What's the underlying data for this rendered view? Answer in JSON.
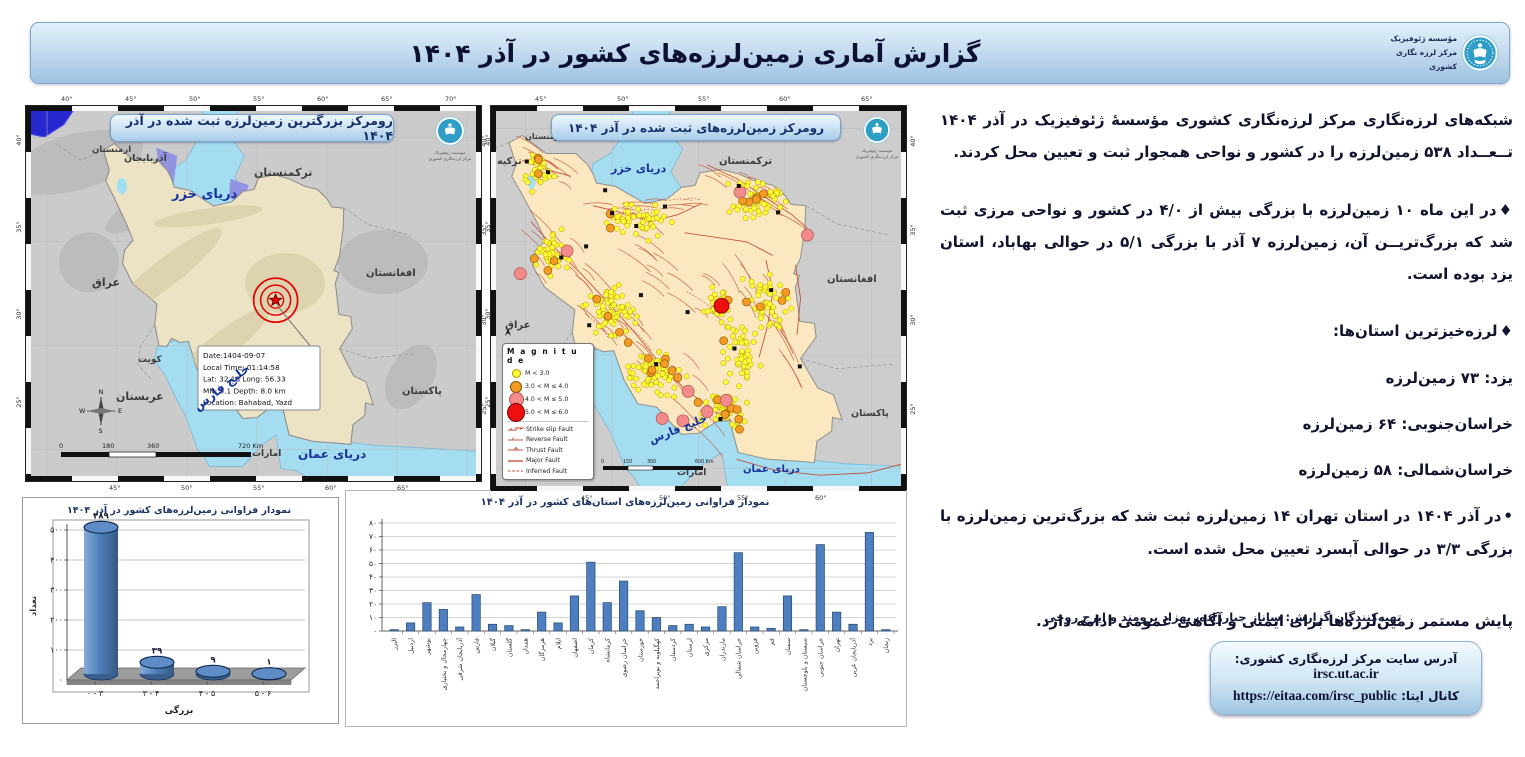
{
  "header": {
    "title": "گزارش آماری زمین‌لرزه‌های کشور در آذر ۱۴۰۴",
    "org_line1": "مؤسسه ژئوفیزیک",
    "org_line2": "مرکز لرزه نگاری کشوری"
  },
  "left_map": {
    "title": "رومرکز بزرگترین زمین‌لرزه ثبت شده در آذر ۱۴۰۴",
    "info_box": [
      "Date:1404-09-07",
      "Local Time: 01:14:58",
      "Lat: 32.18  Long: 56.33",
      "MN: 5.1  Depth: 8.0  km",
      "Location: Bahabad, Yazd"
    ],
    "scale_labels": [
      "0",
      "180",
      "360",
      "720 Km"
    ],
    "compass": [
      "N",
      "W",
      "E",
      "S"
    ],
    "top_ticks": [
      "40°",
      "45°",
      "50°",
      "55°",
      "60°",
      "65°",
      "70°"
    ],
    "bottom_ticks": [
      "45°",
      "50°",
      "55°",
      "60°",
      "65°"
    ],
    "side_ticks": [
      "40°",
      "35°",
      "30°",
      "25°"
    ],
    "labels": {
      "caspian": "دریای خزر",
      "gulf": "خلیج فارس",
      "oman": "دریای عمان",
      "turkmenistan": "ترکمنستان",
      "azerbaijan": "آذربایجان",
      "armenia": "ارمنستان",
      "iraq": "عراق",
      "kuwait": "کویت",
      "saudi": "عربستان",
      "uae": "امارات",
      "afghanistan": "افغانستان",
      "pakistan": "پاکستان"
    }
  },
  "right_map": {
    "title": "رومرکز زمین‌لرزه‌های ثبت شده در آذر ۱۴۰۴",
    "scale_labels": [
      "0",
      "150",
      "300",
      "600 Km"
    ],
    "top_ticks": [
      "45°",
      "50°",
      "55°",
      "60°",
      "65°"
    ],
    "bottom_ticks": [
      "45°",
      "50°",
      "55°",
      "60°"
    ],
    "side_ticks": [
      "40°",
      "35°",
      "30°",
      "25°"
    ],
    "labels": {
      "turkey": "ترکیه",
      "armenia": "ارمنستان",
      "azerbaijan": "آذربایجان",
      "caspian": "دریای خزر",
      "turkmenistan": "ترکمنستان",
      "iraq": "عراق",
      "kuwait": "کویت",
      "afghanistan": "افغانستان",
      "pakistan": "پاکستان",
      "gulf": "خلیج فارس",
      "oman": "دریای عمان",
      "uae": "امارات"
    },
    "legend": {
      "title": "M a g n i t u d e",
      "classes": [
        {
          "label": "M < 3.0",
          "color": "#ffff37",
          "edge": "#b89000",
          "d": 7
        },
        {
          "label": "3.0 < M ≤ 4.0",
          "color": "#f59a23",
          "edge": "#8a5200",
          "d": 10
        },
        {
          "label": "4.0 < M ≤ 5.0",
          "color": "#f48b8b",
          "edge": "#b05050",
          "d": 13
        },
        {
          "label": "5.0 < M ≤ 6.0",
          "color": "#ee0f0f",
          "edge": "#7a0000",
          "d": 17
        }
      ],
      "faults": [
        "Strike slip Fault",
        "Reverse Fault",
        "Thrust Fault",
        "Major Fault",
        "Inferred Fault"
      ]
    },
    "event_counts": {
      "m_lt_3": 489,
      "m_3_4": 39,
      "m_4_5": 9,
      "m_5_6": 1
    }
  },
  "summary": {
    "paragraphs": [
      {
        "bullet": "",
        "cls": "",
        "text": "شبکه‌های لرزه‌نگاری مرکز لرزه‌نگاری کشوری مؤسسهٔ ژئوفیزیک در آذر ۱۴۰۴ تــعــداد ۵۳۸ زمین‌لرزه را در کشور و نواحی همجوار ثبت و تعیین محل کردند."
      },
      {
        "bullet": "♦",
        "cls": "",
        "text": "در این ماه ۱۰ زمین‌لرزه با بزرگی بیش از ۴/۰ در کشور و نواحی مرزی ثبت شد که بزرگ‌تریــن آن، زمین‌لرزه ۷ آذر با بزرگی ۵/۱ در حوالی بهاباد، استان یزد بوده است."
      },
      {
        "bullet": "♦",
        "cls": "head",
        "text": "لرزه‌خیزترین استان‌ها:"
      },
      {
        "bullet": "",
        "cls": "item",
        "text": "یزد: ۷۳ زمین‌لرزه"
      },
      {
        "bullet": "",
        "cls": "item",
        "text": "خراسان‌جنوبی: ۶۴ زمین‌لرزه"
      },
      {
        "bullet": "",
        "cls": "item",
        "text": "خراسان‌شمالی: ۵۸ زمین‌لرزه"
      },
      {
        "bullet": "•",
        "cls": "",
        "text": "در آذر ۱۴۰۴ در استان تهران ۱۴ زمین‌لرزه ثبت شد که بزرگ‌ترین زمین‌لرزه با بزرگی ۳/۳ در حوالی آبسرد تعیین محل شده است."
      },
      {
        "bullet": "",
        "cls": "final",
        "text": "پایش مستمر زمین‌لرزه‌ها برای ایمنی و آگاهی عمومی ادامه دارد."
      }
    ]
  },
  "credits": "تهیه‌کنندگان گزارش: ساناز جبارزاده، بهزاد برومند و ایرج روحی",
  "links_box": {
    "site_label": "آدرس سایت مرکز لرزه‌نگاری کشوری:",
    "site_value": "irsc.ut.ac.ir",
    "channel_label": "کانال ایتا:",
    "channel_value": "https://eitaa.com/irsc_public"
  },
  "chart_data": [
    {
      "type": "bar",
      "style": "cylinder3d",
      "title": "نمودار فراوانی زمین‌لرزه‌های کشور در آذر ۱۴۰۴",
      "categories": [
        "۰ - ۳",
        "۳ - ۴",
        "۴ - ۵",
        "۵ - ۶"
      ],
      "values": [
        489,
        39,
        9,
        1
      ],
      "xlabel": "بزرگی",
      "ylabel": "تعداد",
      "ylim": [
        0,
        500
      ],
      "ytick_step": 100,
      "bar_color": "#4f81bd"
    },
    {
      "type": "bar",
      "title": "نمودار فراوانی زمین‌لرزه‌های استان‌های کشور در آذر ۱۴۰۴",
      "categories": [
        "البرز",
        "اردبیل",
        "بوشهر",
        "چهارمحال و بختیاری",
        "آذربایجان شرقی",
        "فارس",
        "گیلان",
        "گلستان",
        "همدان",
        "هرمزگان",
        "ایلام",
        "اصفهان",
        "کرمان",
        "کرمانشاه",
        "خراسان رضوی",
        "خوزستان",
        "کهگیلویه و بویراحمد",
        "کردستان",
        "لرستان",
        "مرکزی",
        "مازندران",
        "خراسان شمالی",
        "قزوین",
        "قم",
        "سمنان",
        "سیستان و بلوچستان",
        "خراسان جنوبی",
        "تهران",
        "آذربایجان غربی",
        "یزد",
        "زنجان"
      ],
      "values": [
        1,
        6,
        21,
        16,
        3,
        27,
        5,
        4,
        1,
        14,
        6,
        26,
        51,
        21,
        37,
        15,
        10,
        4,
        5,
        3,
        18,
        58,
        3,
        2,
        26,
        1,
        64,
        14,
        5,
        73,
        1
      ],
      "xlabel": "",
      "ylabel": "",
      "ylim": [
        0,
        80
      ],
      "ytick_step": 10,
      "bar_color": "#4d7ebf"
    }
  ]
}
